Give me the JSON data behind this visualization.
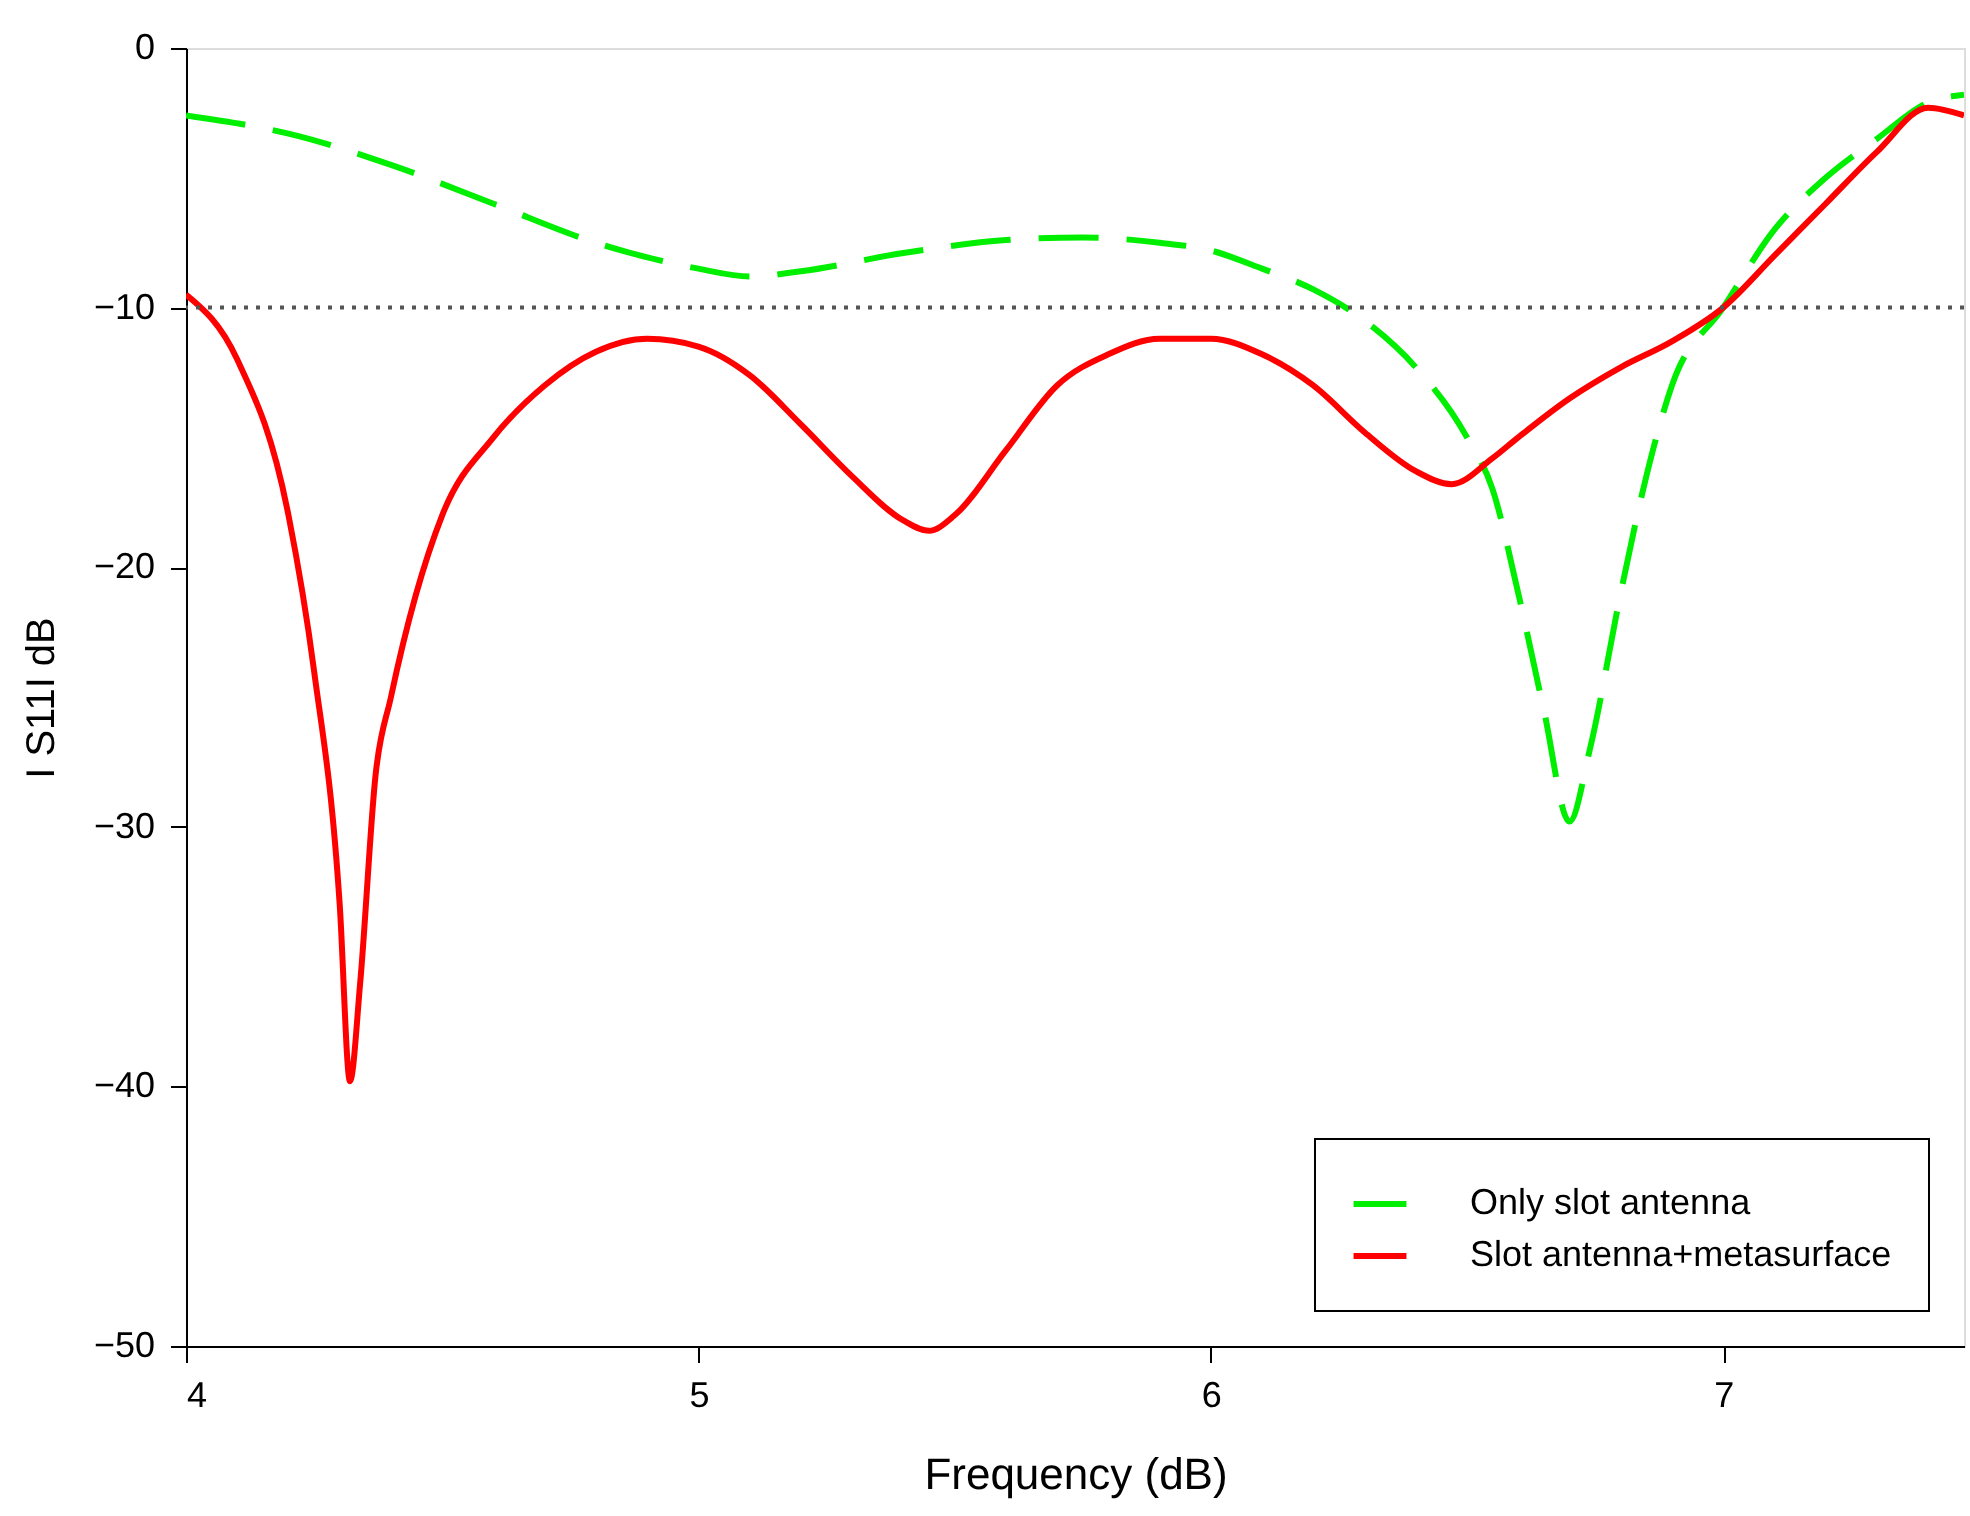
{
  "chart_data": {
    "type": "line",
    "xlabel": "Frequency (dB)",
    "ylabel": "I S11I dB",
    "xlim": [
      4,
      7.47
    ],
    "ylim": [
      -50,
      0
    ],
    "xticks": [
      4,
      5,
      6,
      7
    ],
    "yticks": [
      -50,
      -40,
      -30,
      -20,
      -10,
      0
    ],
    "grid": false,
    "legend": "bottom right",
    "marker": "none",
    "ref_lines": [
      {
        "axis": "y",
        "value": -10,
        "color": "#555555",
        "line_style": "dotted"
      }
    ],
    "series": [
      {
        "name": "Only slot antenna",
        "color": "#00ee00",
        "line_style": "dashed",
        "x": [
          4.0,
          4.2,
          4.4,
          4.6,
          4.8,
          5.0,
          5.1,
          5.2,
          5.4,
          5.6,
          5.75,
          5.9,
          6.0,
          6.1,
          6.2,
          6.3,
          6.4,
          6.5,
          6.55,
          6.6,
          6.65,
          6.7,
          6.74,
          6.8,
          6.85,
          6.9,
          7.0,
          7.1,
          7.2,
          7.3,
          7.4,
          7.47
        ],
        "values": [
          -2.6,
          -3.3,
          -4.5,
          -6,
          -7.5,
          -8.5,
          -8.8,
          -8.6,
          -7.9,
          -7.4,
          -7.3,
          -7.5,
          -7.8,
          -8.5,
          -9.3,
          -10.5,
          -12.3,
          -15,
          -17,
          -21,
          -25.5,
          -29.8,
          -27,
          -21,
          -16.5,
          -13,
          -10,
          -7,
          -5,
          -3.5,
          -2.1,
          -1.8
        ]
      },
      {
        "name": "Slot antenna+metasurface",
        "color": "#ff0000",
        "line_style": "solid",
        "x": [
          4.0,
          4.1,
          4.2,
          4.25,
          4.3,
          4.32,
          4.34,
          4.37,
          4.4,
          4.5,
          4.6,
          4.7,
          4.8,
          4.9,
          5.0,
          5.1,
          5.2,
          5.3,
          5.4,
          5.45,
          5.5,
          5.6,
          5.7,
          5.8,
          5.9,
          6.0,
          6.1,
          6.2,
          6.3,
          6.4,
          6.47,
          6.55,
          6.6,
          6.7,
          6.8,
          6.9,
          7.0,
          7.1,
          7.2,
          7.3,
          7.4,
          7.47
        ],
        "values": [
          -9.5,
          -12,
          -18,
          -24,
          -33,
          -39.8,
          -36,
          -28,
          -25,
          -18,
          -15,
          -13,
          -11.7,
          -11.2,
          -11.5,
          -12.6,
          -14.5,
          -16.5,
          -18.2,
          -18.6,
          -18,
          -15.5,
          -13,
          -11.8,
          -11.2,
          -11.2,
          -11.8,
          -13,
          -14.8,
          -16.3,
          -16.8,
          -15.8,
          -15,
          -13.5,
          -12.3,
          -11.3,
          -10,
          -8,
          -6,
          -4,
          -2.3,
          -2.6
        ]
      }
    ]
  }
}
